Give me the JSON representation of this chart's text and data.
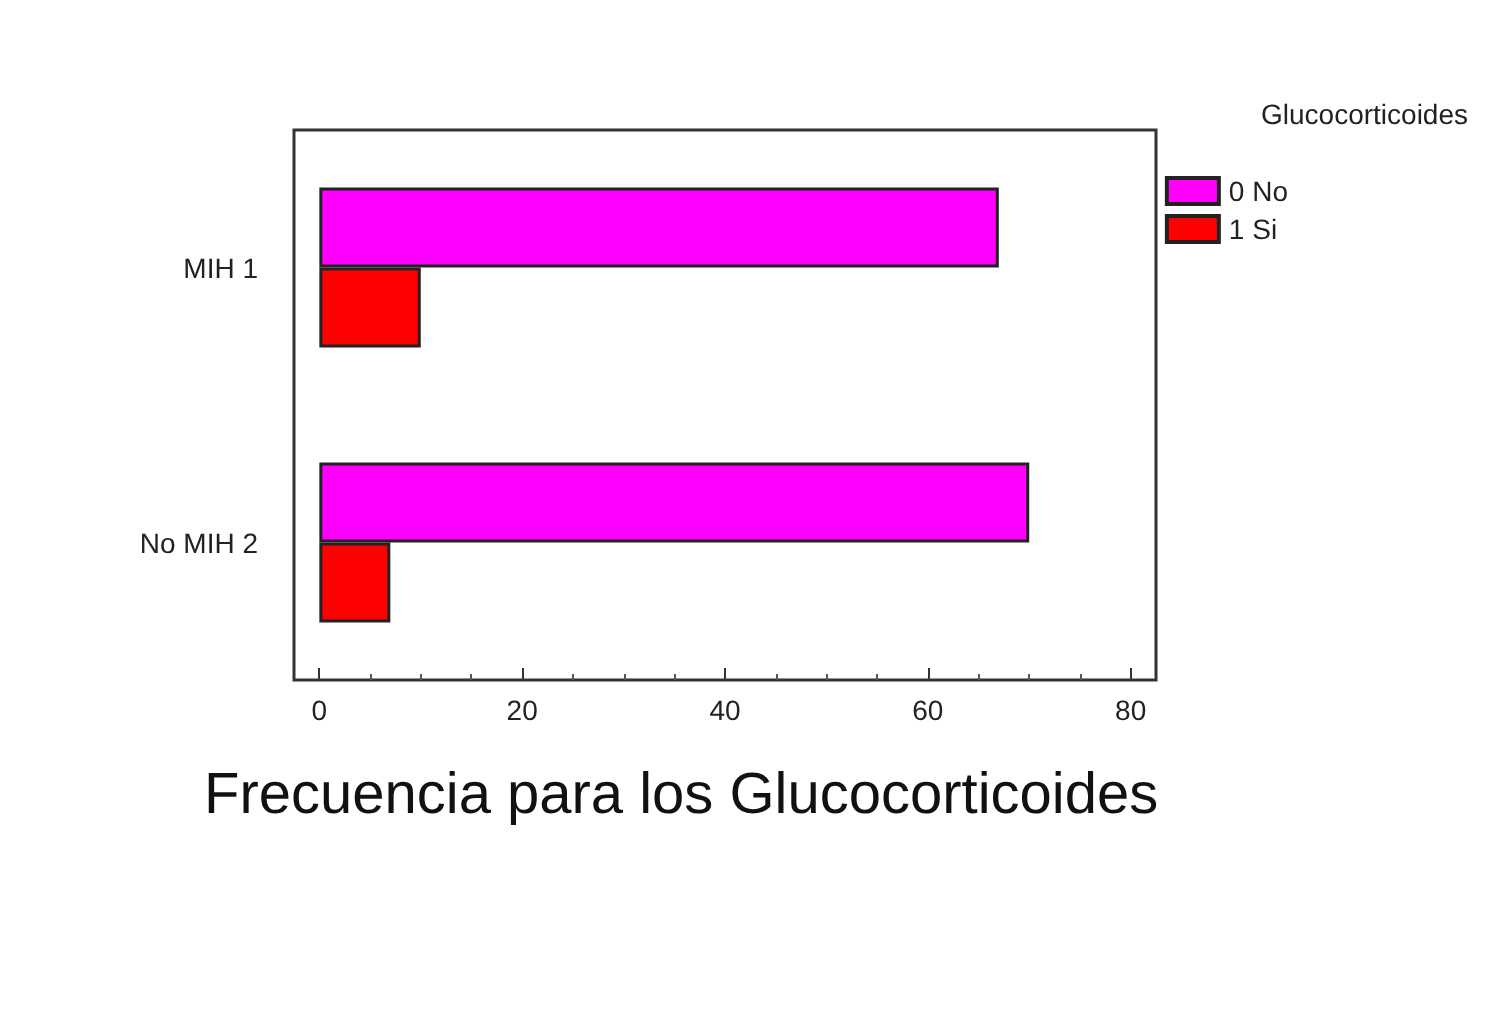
{
  "chart_data": {
    "type": "bar",
    "orientation": "horizontal",
    "title": "Frecuencia para los Glucocorticoides",
    "legend_title": "Glucocorticoides",
    "categories": [
      "MIH 1",
      "No MIH 2"
    ],
    "series": [
      {
        "name": "0 No",
        "color": "#ff00ff",
        "values": [
          67,
          70
        ]
      },
      {
        "name": "1 Si",
        "color": "#ff0000",
        "values": [
          10,
          7
        ]
      }
    ],
    "xlim": [
      -2.5,
      82.5
    ],
    "xticks": [
      0,
      20,
      40,
      60,
      80
    ],
    "grid": false,
    "legend": "top right"
  }
}
